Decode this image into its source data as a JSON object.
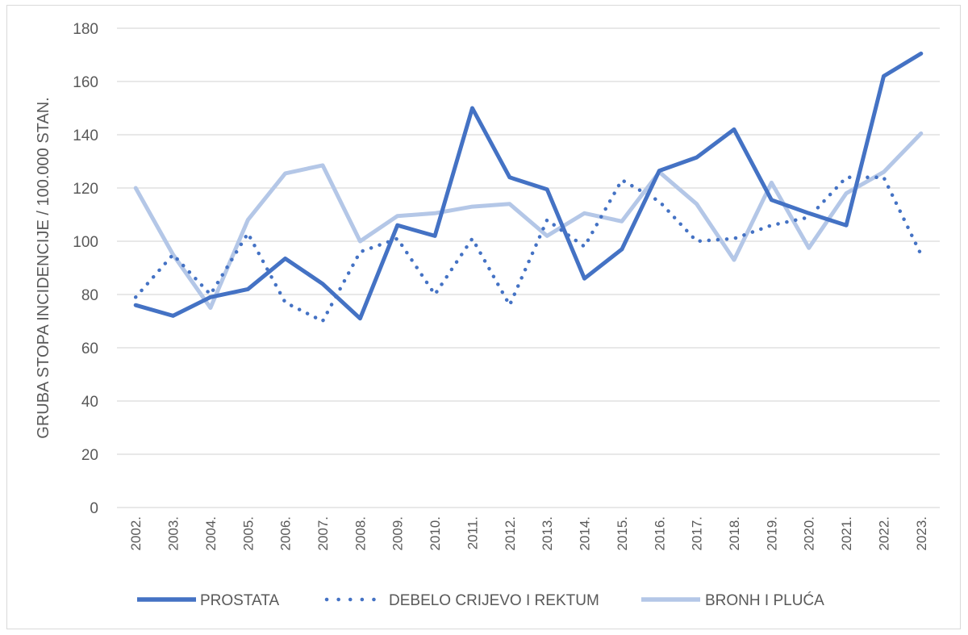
{
  "chart_data": {
    "type": "line",
    "title": "",
    "xlabel": "",
    "ylabel": "GRUBA STOPA INCIDENCIJE / 100.000 STAN.",
    "ylim": [
      0,
      180
    ],
    "yticks": [
      "0",
      "20",
      "40",
      "60",
      "80",
      "100",
      "120",
      "140",
      "160",
      "180"
    ],
    "grid": true,
    "legend_position": "bottom",
    "categories": [
      "2002.",
      "2003.",
      "2004.",
      "2005.",
      "2006.",
      "2007.",
      "2008.",
      "2009.",
      "2010.",
      "2011.",
      "2012.",
      "2013.",
      "2014.",
      "2015.",
      "2016.",
      "2017.",
      "2018.",
      "2019.",
      "2020.",
      "2021.",
      "2022.",
      "2023."
    ],
    "series": [
      {
        "name": "PROSTATA",
        "style": "solid",
        "color": "#4472c4",
        "values": [
          76,
          72,
          79,
          82,
          93.5,
          84,
          71,
          106,
          102,
          150,
          124,
          119.5,
          86,
          97,
          126.5,
          131.5,
          142,
          115.5,
          110.5,
          106,
          162,
          170.5
        ]
      },
      {
        "name": "DEBELO CRIJEVO I REKTUM",
        "style": "dotted",
        "color": "#4472c4",
        "values": [
          79,
          95,
          80,
          103,
          77,
          70,
          96,
          101,
          80,
          101,
          76,
          108,
          98,
          123,
          115,
          100,
          101,
          106,
          109,
          124,
          124,
          95
        ]
      },
      {
        "name": "BRONH I PLUĆA",
        "style": "solid",
        "color": "#b4c7e7",
        "values": [
          120,
          95,
          75,
          108,
          125.5,
          128.5,
          100,
          109.5,
          110.5,
          113,
          114,
          102,
          110.5,
          107.5,
          126,
          114,
          93,
          122,
          97.5,
          118,
          126,
          140.5
        ]
      }
    ]
  }
}
